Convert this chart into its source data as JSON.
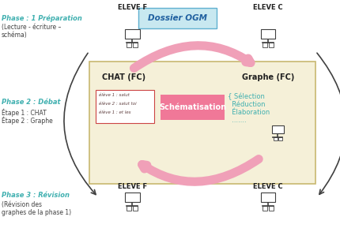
{
  "bg_color": "#ffffff",
  "box_bg": "#f5f0d8",
  "box_border": "#c8b870",
  "dossier_bg": "#c8e8f0",
  "schematisation_bg": "#f07898",
  "chat_box_border": "#cc4444",
  "phase1_title": "Phase : 1 Préparation",
  "phase1_sub": "(Lecture - écriture –\nschéma)",
  "phase2_title": "Phase 2 : Débat",
  "phase2_sub1": "Étape 1 : CHAT",
  "phase2_sub2": "Étape 2 : Graphe",
  "phase3_title": "Phase 3 : Révision",
  "phase3_sub": "(Révision des\ngraphes de la phase 1)",
  "eleve_f_top": "ELEVE F",
  "eleve_c_top": "ELEVE C",
  "eleve_f_bot": "ELEVE F",
  "eleve_c_bot": "ELEVE C",
  "dossier_label": "Dossier OGM",
  "chat_label": "CHAT (FC)",
  "graphe_label": "Graphe (FC)",
  "schema_label": "Schématisation",
  "chat_lines": [
    "élève 1 : salut",
    "élève 2 : salut toi",
    "élève 1 : et les"
  ],
  "cyan_color": "#40b0b0",
  "pink_color": "#f07898",
  "pink_arrow": "#f0a0b8",
  "arrow_color": "#404040",
  "selection_lines": [
    "{ Sélection",
    "  Réduction",
    "  Élaboration",
    "  ......."
  ]
}
